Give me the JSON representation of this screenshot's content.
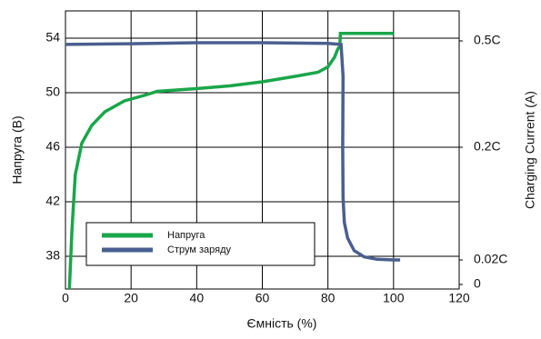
{
  "chart_data": {
    "type": "line",
    "xlabel": "Ємність (%)",
    "ylabel": "Напруга (B)",
    "y2label": "Charging Current (A)",
    "xlim": [
      0,
      120
    ],
    "xticks": [
      0,
      20,
      40,
      60,
      80,
      100,
      120
    ],
    "ylim": [
      35.6,
      56
    ],
    "yticks": [
      38,
      42,
      46,
      50,
      54
    ],
    "y2lim": [
      0,
      0.55
    ],
    "y2ticks": [
      {
        "value": 0.5,
        "label": "0.5C"
      },
      {
        "value": 0.2,
        "label": "0.2C"
      },
      {
        "value": 0.02,
        "label": "0.02C"
      },
      0
    ],
    "grid": true,
    "legend": "lower left",
    "series": [
      {
        "name": "Напруга",
        "color": "#1aa64a",
        "x": [
          1.2,
          2,
          3,
          5,
          8,
          12,
          18,
          24,
          28,
          40,
          50,
          60,
          70,
          77,
          80,
          82,
          83,
          83.6,
          83.8,
          100
        ],
        "values": [
          35.6,
          40,
          44,
          46.3,
          47.6,
          48.6,
          49.4,
          49.8,
          50.1,
          50.3,
          50.5,
          50.8,
          51.2,
          51.5,
          51.9,
          52.6,
          53.2,
          53.4,
          54.35,
          54.35
        ]
      },
      {
        "name": "Струм заряду",
        "color": "#4a5f8f",
        "axis": "y2",
        "x": [
          0,
          20,
          40,
          60,
          80,
          84,
          84.6,
          84.5,
          84.6,
          85,
          86,
          88,
          91,
          95,
          100,
          102
        ],
        "values": [
          0.49,
          0.492,
          0.495,
          0.495,
          0.493,
          0.49,
          0.4,
          0.2,
          0.12,
          0.08,
          0.055,
          0.035,
          0.025,
          0.021,
          0.02,
          0.02
        ]
      }
    ]
  }
}
